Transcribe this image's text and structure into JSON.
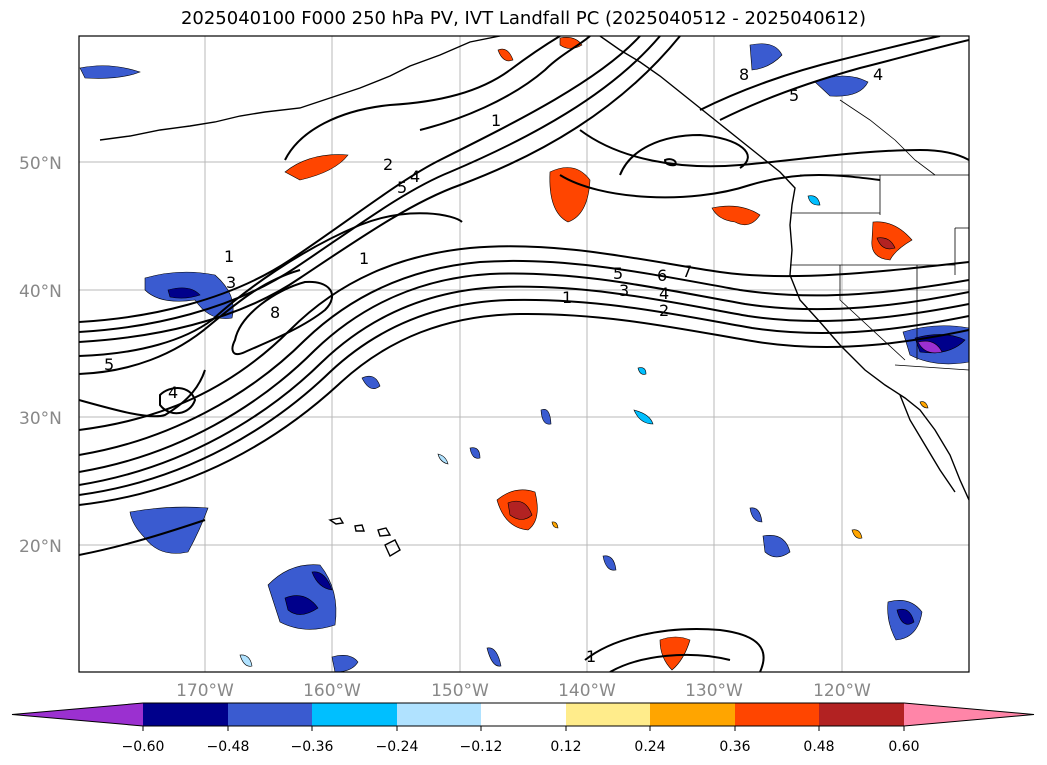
{
  "title": "2025040100 F000 250 hPa PV, IVT Landfall PC (2025040512 - 2025040612)",
  "lat_ticks": [
    "50°N",
    "40°N",
    "30°N",
    "20°N"
  ],
  "lon_ticks": [
    "170°W",
    "160°W",
    "150°W",
    "140°W",
    "130°W",
    "120°W"
  ],
  "colorbar": {
    "ticks": [
      "−0.60",
      "−0.48",
      "−0.36",
      "−0.24",
      "−0.12",
      "0.12",
      "0.24",
      "0.36",
      "0.48",
      "0.60"
    ],
    "colors": [
      "#9b30d0",
      "#00008b",
      "#3a5bd0",
      "#00bfff",
      "#b0e2ff",
      "#ffffff",
      "#ffec8b",
      "#ffa500",
      "#ff4500",
      "#b22222",
      "#ff85a8"
    ]
  },
  "contour_labels": [
    "1",
    "2",
    "3",
    "4",
    "5",
    "6",
    "7",
    "8"
  ]
}
